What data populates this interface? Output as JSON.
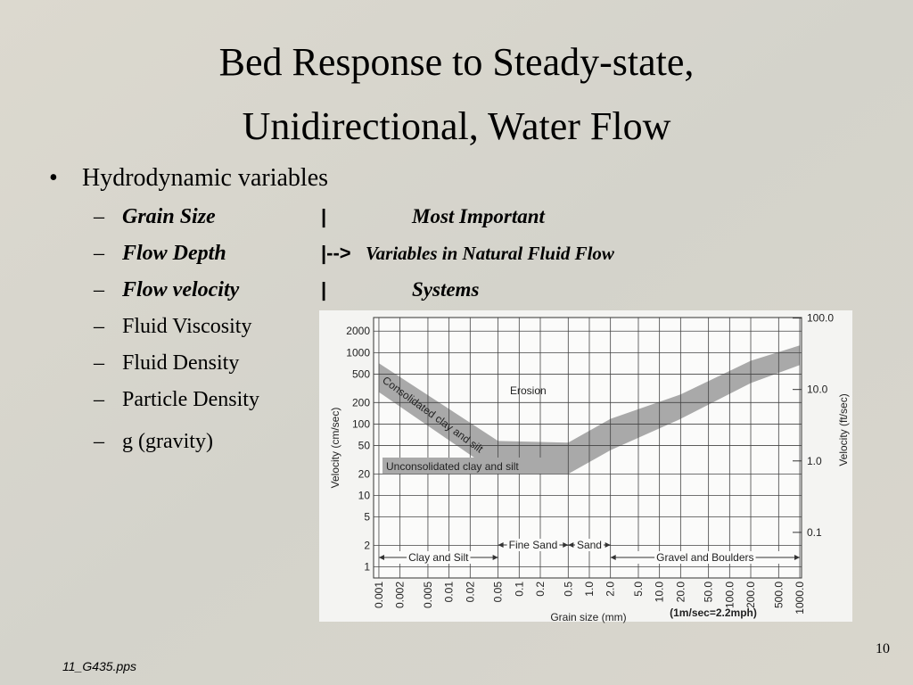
{
  "slide": {
    "title": [
      "Bed Response to Steady-state,",
      "Unidirectional, Water Flow"
    ],
    "bullet": "Hydrodynamic variables",
    "key_variables": [
      {
        "name": "Grain Size",
        "marker": "|",
        "note": "Most Important"
      },
      {
        "name": "Flow Depth",
        "marker": "|-->",
        "note": "Variables in Natural Fluid Flow"
      },
      {
        "name": "Flow velocity",
        "marker": "|",
        "note": "Systems"
      }
    ],
    "other_variables": [
      "Fluid Viscosity",
      "Fluid Density",
      "Particle Density",
      "g (gravity)"
    ],
    "footer": "11_G435.pps",
    "page_number": 10
  },
  "chart_data": {
    "type": "band",
    "x_label": "Grain size (mm)",
    "y_label": "Velocity (cm/sec)",
    "y2_label": "Velocity (ft/sec)",
    "note": "(1m/sec=2.2mph)",
    "log_x": true,
    "log_y": true,
    "grid": true,
    "xlim": [
      0.00084,
      1060
    ],
    "xticks": [
      0.001,
      0.002,
      0.005,
      0.01,
      0.02,
      0.05,
      0.1,
      0.2,
      0.5,
      {
        "value": 1,
        "label": "1.0"
      },
      {
        "value": 2,
        "label": "2.0"
      },
      {
        "value": 5,
        "label": "5.0"
      },
      {
        "value": 10,
        "label": "10.0"
      },
      {
        "value": 20,
        "label": "20.0"
      },
      {
        "value": 50,
        "label": "50.0"
      },
      {
        "value": 100,
        "label": "100.0"
      },
      {
        "value": 200,
        "label": "200.0"
      },
      {
        "value": 500,
        "label": "500.0"
      },
      {
        "value": 1000,
        "label": "1000.0"
      }
    ],
    "ylim": [
      0.7,
      3100
    ],
    "yticks": [
      1,
      2,
      5,
      10,
      20,
      50,
      100,
      200,
      500,
      1000,
      2000
    ],
    "y2lim": [
      0.023,
      101.7
    ],
    "y2ticks": [
      0.1,
      {
        "value": 1,
        "label": "1.0"
      },
      {
        "value": 10,
        "label": "10.0"
      },
      {
        "value": 100,
        "label": "100.0"
      }
    ],
    "x": [
      0.001,
      0.05,
      0.5,
      2,
      20,
      200,
      1000
    ],
    "band": {
      "color": "#a9a9a9",
      "upper": [
        710,
        58,
        55,
        118,
        260,
        770,
        1260
      ],
      "lower": [
        280,
        20,
        20,
        43,
        118,
        375,
        670
      ]
    },
    "region_labels": [
      "Erosion",
      "Consolidated clay and silt",
      "Unconsolidated clay and silt"
    ],
    "size_classes": [
      {
        "label": "Clay and Silt",
        "range": [
          0.001,
          0.05
        ]
      },
      {
        "label": "Fine Sand",
        "range": [
          0.05,
          0.5
        ]
      },
      {
        "label": "Sand",
        "range": [
          0.5,
          2
        ]
      },
      {
        "label": "Gravel and Boulders",
        "range": [
          2,
          1000
        ]
      }
    ]
  }
}
